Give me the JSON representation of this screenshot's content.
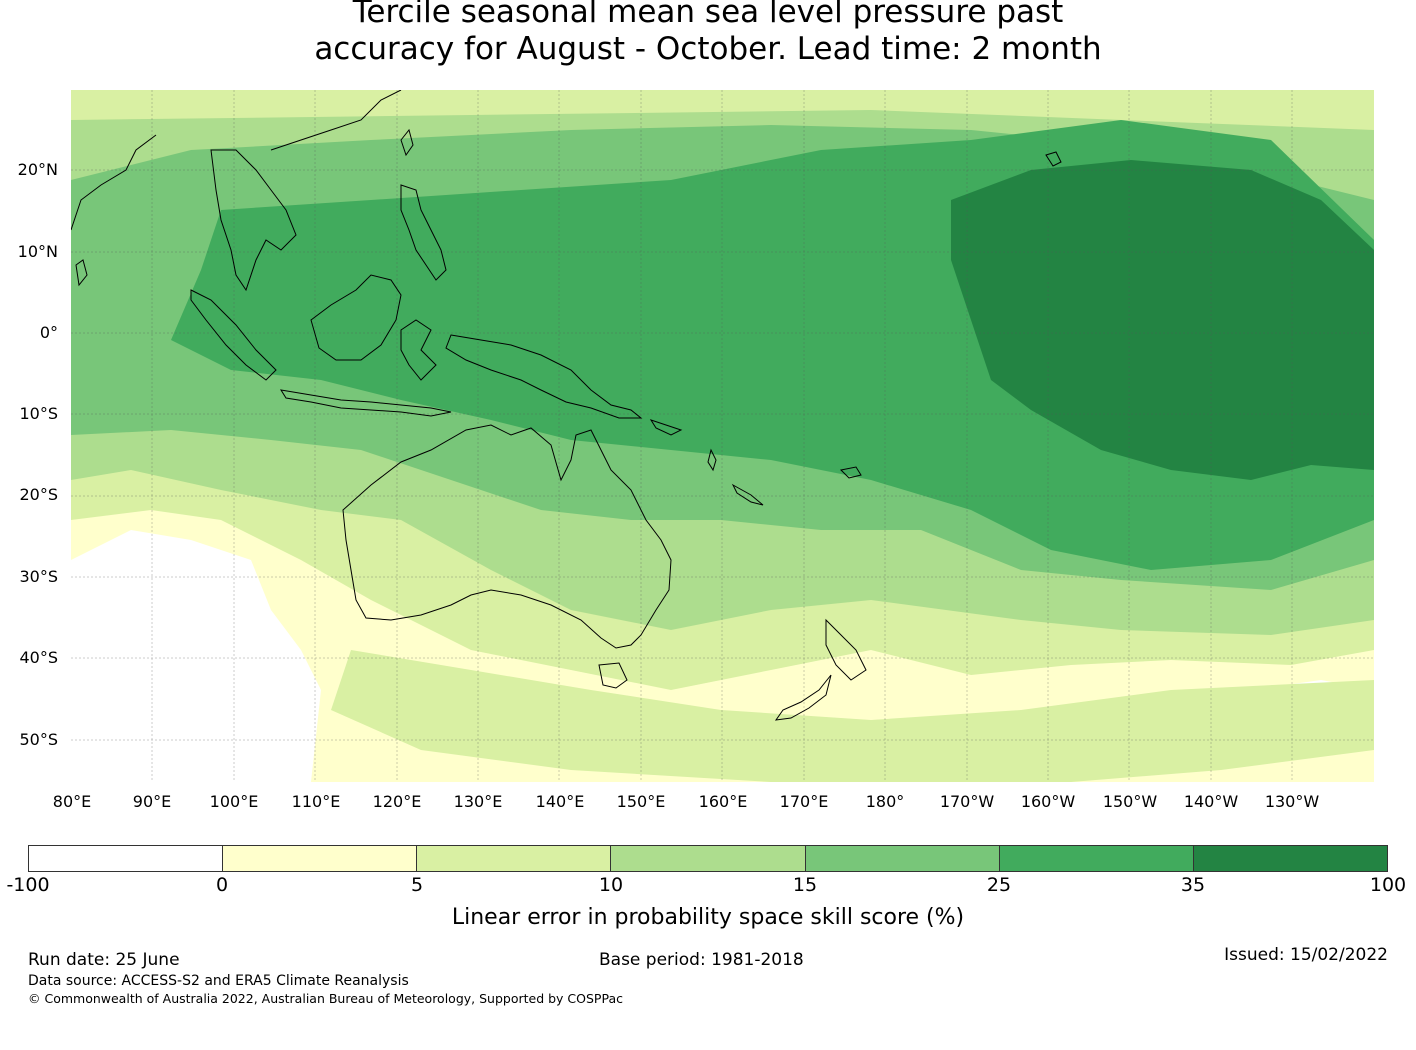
{
  "title": {
    "line1": "Tercile seasonal mean sea level pressure past",
    "line2": "accuracy for August - October. Lead time: 2 month"
  },
  "map": {
    "lat_labels": [
      "20°N",
      "10°N",
      "0°",
      "10°S",
      "20°S",
      "30°S",
      "40°S",
      "50°S"
    ],
    "lon_labels": [
      "80°E",
      "90°E",
      "100°E",
      "110°E",
      "120°E",
      "130°E",
      "140°E",
      "150°E",
      "160°E",
      "170°E",
      "180°",
      "170°W",
      "160°W",
      "150°W",
      "140°W",
      "130°W"
    ],
    "extent": {
      "lon": [
        80,
        240
      ],
      "lat": [
        -55,
        30
      ]
    },
    "grid": "on",
    "regions": [
      "Western Pacific / Maritime Continent",
      "Australia",
      "New Zealand",
      "Papua New Guinea",
      "Pacific Islands"
    ]
  },
  "colorbar": {
    "ticks": [
      "-100",
      "0",
      "5",
      "10",
      "15",
      "25",
      "35",
      "100"
    ],
    "colors": [
      "#ffffff",
      "#ffffcc",
      "#d9f0a3",
      "#addd8e",
      "#78c679",
      "#41ab5d",
      "#238443"
    ],
    "label": "Linear error in probability space skill score (%)"
  },
  "footer": {
    "run_date": "Run date: 25 June",
    "base_period": "Base period: 1981-2018",
    "issued": "Issued: 15/02/2022",
    "data_source": "Data source: ACCESS-S2 and ERA5 Climate Reanalysis",
    "copyright": "© Commonwealth of Australia 2022, Australian Bureau of Meteorology, Supported by COSPPac"
  }
}
